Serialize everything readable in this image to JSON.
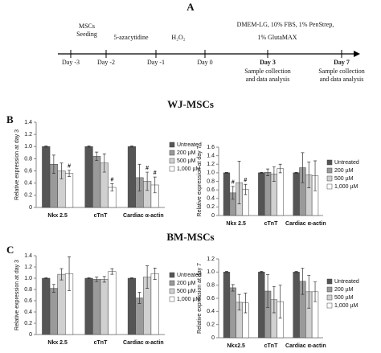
{
  "labels": {
    "a": "A",
    "b": "B",
    "c": "C",
    "wj": "WJ-MSCs",
    "bm": "BM-MSCs"
  },
  "timeline": {
    "days": [
      "Day -3",
      "Day -2",
      "Day -1",
      "Day 0",
      "Day 3",
      "Day 7"
    ],
    "above": [
      "MSCs",
      "Seeding",
      "5-azacytidine",
      "H₂O₂",
      "DMEM-LG, 10% FBS,  1% PenStrep,",
      "1% GlutaMAX"
    ],
    "below": [
      "Sample collection",
      "and data analysis",
      "Sample collection",
      "and data analysis"
    ]
  },
  "chart_data": [
    {
      "type": "bar",
      "ylabel": "Relative expression at day 3",
      "categories": [
        "Nkx 2.5",
        "cTnT",
        "Cardiac α-actin"
      ],
      "ylim": [
        0,
        1.4
      ],
      "yticks": [
        0,
        0.2,
        0.4,
        0.6,
        0.8,
        {
          "value": 1,
          "label": "1.0"
        },
        1.2,
        1.4
      ],
      "series": [
        {
          "name": "Untreated",
          "color": "#555555",
          "values": [
            1.0,
            1.0,
            1.0
          ],
          "errors": [
            0.01,
            0.01,
            0.01
          ],
          "sig": [
            null,
            null,
            null
          ]
        },
        {
          "name": "200 µM",
          "color": "#9a9a9a",
          "values": [
            0.71,
            0.84,
            0.49
          ],
          "errors": [
            0.15,
            0.07,
            0.22
          ],
          "sig": [
            null,
            null,
            null
          ]
        },
        {
          "name": "500 µM",
          "color": "#d0d0d0",
          "values": [
            0.6,
            0.73,
            0.43
          ],
          "errors": [
            0.13,
            0.15,
            0.15
          ],
          "sig": [
            null,
            null,
            "#"
          ]
        },
        {
          "name": "1,000 µM",
          "color": "#ffffff",
          "values": [
            0.56,
            0.33,
            0.37
          ],
          "errors": [
            0.05,
            0.06,
            0.13
          ],
          "sig": [
            "#",
            "#",
            "#"
          ]
        }
      ]
    },
    {
      "type": "bar",
      "ylabel": "Relative expression at day 7",
      "categories": [
        "Nkx 2.5",
        "cTnT",
        "Cardiac α-actin"
      ],
      "ylim": [
        0,
        1.6
      ],
      "yticks": [
        0,
        0.2,
        0.4,
        0.6,
        0.8,
        {
          "value": 1,
          "label": "1.0"
        },
        1.2,
        1.4,
        1.6
      ],
      "series": [
        {
          "name": "Untreated",
          "color": "#555555",
          "values": [
            1.0,
            1.0,
            1.0
          ],
          "errors": [
            0.01,
            0.01,
            0.01
          ],
          "sig": [
            null,
            null,
            null
          ]
        },
        {
          "name": "200 µM",
          "color": "#9a9a9a",
          "values": [
            0.53,
            1.01,
            1.12
          ],
          "errors": [
            0.15,
            0.08,
            0.35
          ],
          "sig": [
            "#",
            null,
            null
          ]
        },
        {
          "name": "500 µM",
          "color": "#d0d0d0",
          "values": [
            0.77,
            0.97,
            0.95
          ],
          "errors": [
            0.5,
            0.17,
            0.3
          ],
          "sig": [
            null,
            null,
            null
          ]
        },
        {
          "name": "1,000 µM",
          "color": "#ffffff",
          "values": [
            0.61,
            1.1,
            0.93
          ],
          "errors": [
            0.12,
            0.1,
            0.35
          ],
          "sig": [
            "#",
            null,
            null
          ]
        }
      ]
    },
    {
      "type": "bar",
      "ylabel": "Relative expression at day 3",
      "categories": [
        "Nkx 2.5",
        "cTnT",
        "Cardiac α-actin"
      ],
      "ylim": [
        0,
        1.4
      ],
      "yticks": [
        0,
        0.2,
        0.4,
        0.6,
        0.8,
        {
          "value": 1,
          "label": "1.0"
        },
        1.2,
        1.4
      ],
      "series": [
        {
          "name": "Untreated",
          "color": "#555555",
          "values": [
            1.0,
            1.0,
            1.0
          ],
          "errors": [
            0.01,
            0.01,
            0.01
          ],
          "sig": [
            null,
            null,
            null
          ]
        },
        {
          "name": "200 µM",
          "color": "#9a9a9a",
          "values": [
            0.82,
            0.98,
            0.65
          ],
          "errors": [
            0.07,
            0.04,
            0.1
          ],
          "sig": [
            null,
            null,
            null
          ]
        },
        {
          "name": "500 µM",
          "color": "#d0d0d0",
          "values": [
            1.07,
            0.98,
            1.02
          ],
          "errors": [
            0.1,
            0.05,
            0.2
          ],
          "sig": [
            null,
            null,
            null
          ]
        },
        {
          "name": "1,000 µM",
          "color": "#ffffff",
          "values": [
            1.08,
            1.12,
            1.08
          ],
          "errors": [
            0.3,
            0.05,
            0.1
          ],
          "sig": [
            null,
            null,
            null
          ]
        }
      ]
    },
    {
      "type": "bar",
      "ylabel": "Relative expression at day 7",
      "categories": [
        "Nkx2.5",
        "cTnT",
        "Cardiac α-actin"
      ],
      "ylim": [
        0,
        1.2
      ],
      "yticks": [
        0,
        0.2,
        0.4,
        0.6,
        0.8,
        {
          "value": 1,
          "label": "1.0"
        },
        1.2
      ],
      "series": [
        {
          "name": "Untreated",
          "color": "#555555",
          "values": [
            1.0,
            1.0,
            1.0
          ],
          "errors": [
            0.01,
            0.01,
            0.01
          ],
          "sig": [
            null,
            null,
            null
          ]
        },
        {
          "name": "200 µM",
          "color": "#9a9a9a",
          "values": [
            0.76,
            0.71,
            0.86
          ],
          "errors": [
            0.05,
            0.25,
            0.2
          ],
          "sig": [
            null,
            null,
            null
          ]
        },
        {
          "name": "500 µM",
          "color": "#d0d0d0",
          "values": [
            0.54,
            0.58,
            0.7
          ],
          "errors": [
            0.12,
            0.2,
            0.25
          ],
          "sig": [
            null,
            null,
            null
          ]
        },
        {
          "name": "1,000 µM",
          "color": "#ffffff",
          "values": [
            0.53,
            0.55,
            0.7
          ],
          "errors": [
            0.15,
            0.25,
            0.15
          ],
          "sig": [
            null,
            null,
            null
          ]
        }
      ]
    }
  ]
}
